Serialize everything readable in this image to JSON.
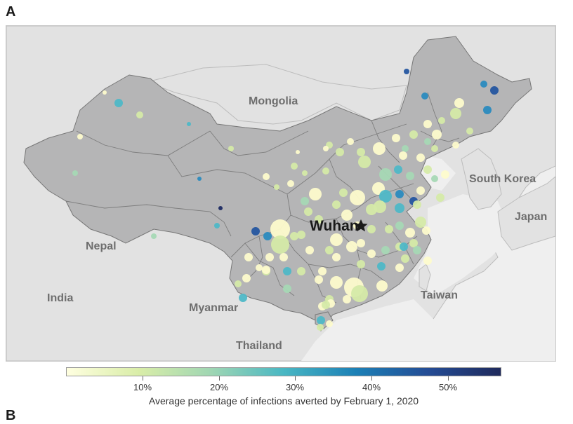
{
  "panel_label": "A",
  "panel_label_next": "B",
  "map": {
    "countries": [
      {
        "name": "Mongolia"
      },
      {
        "name": "South Korea"
      },
      {
        "name": "Japan"
      },
      {
        "name": "Nepal"
      },
      {
        "name": "India"
      },
      {
        "name": "Myanmar"
      },
      {
        "name": "Taiwan"
      },
      {
        "name": "Thailand"
      }
    ],
    "city": {
      "name": "Wuhan",
      "marker": "star-icon"
    },
    "colors": {
      "land_other": "#e2e2e2",
      "land_china": "#b5b5b6",
      "water": "#efefef",
      "border": "#777777"
    }
  },
  "legend": {
    "title": "Average percentage of infections averted by February 1, 2020",
    "ticks": [
      "10%",
      "20%",
      "30%",
      "40%",
      "50%"
    ],
    "range": [
      0,
      57
    ],
    "gradient": [
      "#ffffe0",
      "#d9eda8",
      "#9fd6b3",
      "#49b7c3",
      "#1c80b6",
      "#244c95",
      "#1f2a5c"
    ]
  }
}
